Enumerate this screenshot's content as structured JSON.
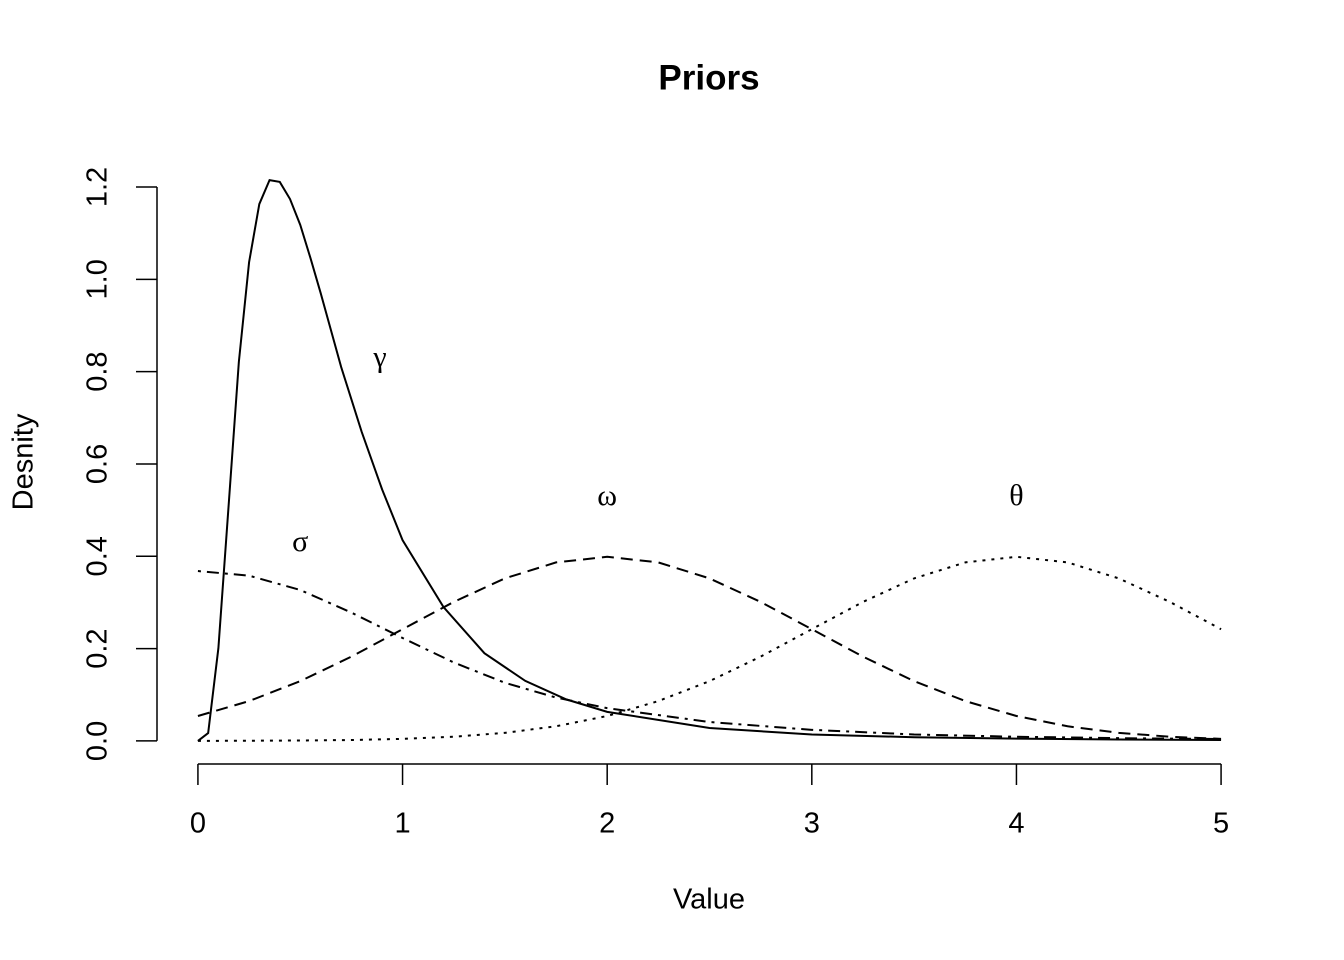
{
  "chart_data": {
    "type": "line",
    "title": "Priors",
    "x_label": "Value",
    "y_label": "Desnity",
    "xlim": [
      -0.2,
      5.2
    ],
    "ylim": [
      -0.05,
      1.265
    ],
    "xticks": [
      0,
      1,
      2,
      3,
      4,
      5
    ],
    "yticks": [
      {
        "value": 0,
        "label": "0.0"
      },
      0.2,
      0.4,
      0.6,
      0.8,
      {
        "value": 1,
        "label": "1.0"
      },
      1.2
    ],
    "series": [
      {
        "name": "γ",
        "color": "#000000",
        "line_style": "solid",
        "x": [
          0,
          0.05,
          0.1,
          0.15,
          0.2,
          0.25,
          0.3,
          0.35,
          0.4,
          0.45,
          0.5,
          0.55,
          0.6,
          0.65,
          0.7,
          0.8,
          0.9,
          1.0,
          1.2,
          1.4,
          1.6,
          1.8,
          2.0,
          2.5,
          3.0,
          3.5,
          4.0,
          4.5,
          5.0
        ],
        "values": [
          0,
          0.017,
          0.201,
          0.51,
          0.821,
          1.037,
          1.163,
          1.215,
          1.211,
          1.174,
          1.118,
          1.046,
          0.97,
          0.89,
          0.81,
          0.67,
          0.545,
          0.435,
          0.29,
          0.19,
          0.13,
          0.09,
          0.063,
          0.028,
          0.014,
          0.008,
          0.005,
          0.003,
          0.002
        ]
      },
      {
        "name": "σ",
        "color": "#000000",
        "line_style": "dotdash",
        "x": [
          0,
          0.25,
          0.5,
          0.75,
          1.0,
          1.25,
          1.5,
          1.75,
          2.0,
          2.5,
          3.0,
          3.5,
          4.0,
          4.5,
          5.0
        ],
        "values": [
          0.368,
          0.358,
          0.327,
          0.278,
          0.223,
          0.17,
          0.126,
          0.094,
          0.071,
          0.041,
          0.024,
          0.014,
          0.009,
          0.006,
          0.004
        ]
      },
      {
        "name": "ω",
        "color": "#000000",
        "line_style": "dashed",
        "x": [
          0,
          0.25,
          0.5,
          0.75,
          1.0,
          1.25,
          1.5,
          1.75,
          2.0,
          2.25,
          2.5,
          2.75,
          3.0,
          3.25,
          3.5,
          3.75,
          4.0,
          4.25,
          4.5,
          4.75,
          5.0
        ],
        "values": [
          0.054,
          0.0863,
          0.1295,
          0.1826,
          0.242,
          0.3011,
          0.3521,
          0.3867,
          0.3989,
          0.3867,
          0.3521,
          0.3011,
          0.242,
          0.1826,
          0.1295,
          0.0863,
          0.054,
          0.0317,
          0.0175,
          0.0091,
          0.0044
        ]
      },
      {
        "name": "θ",
        "color": "#000000",
        "line_style": "dotted",
        "x": [
          0,
          0.25,
          0.5,
          0.75,
          1.0,
          1.25,
          1.5,
          1.75,
          2.0,
          2.25,
          2.5,
          2.75,
          3.0,
          3.25,
          3.5,
          3.75,
          4.0,
          4.25,
          4.5,
          4.75,
          5.0
        ],
        "values": [
          0.0001,
          0.0004,
          0.0009,
          0.002,
          0.0044,
          0.0091,
          0.0175,
          0.0317,
          0.054,
          0.0863,
          0.1295,
          0.1826,
          0.242,
          0.3011,
          0.3521,
          0.3867,
          0.3989,
          0.3867,
          0.3521,
          0.3011,
          0.242
        ]
      }
    ]
  }
}
